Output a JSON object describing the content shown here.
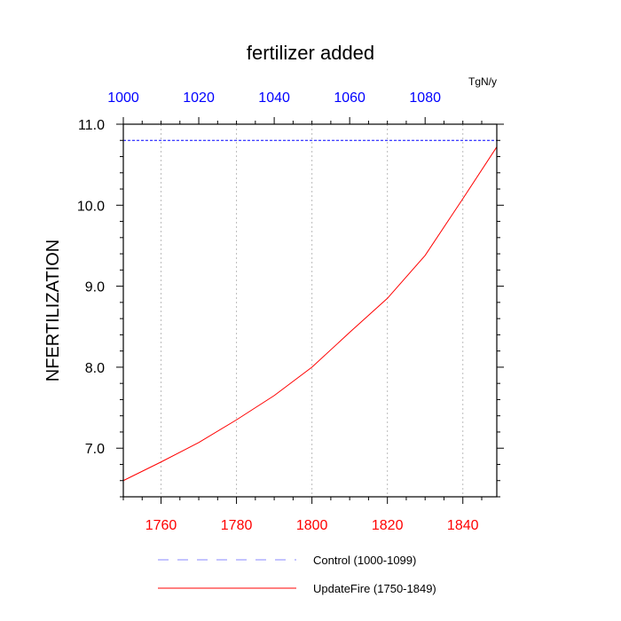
{
  "chart_data": {
    "type": "line",
    "title": "fertilizer added",
    "ylabel": "NFERTILIZATION",
    "top_axis_unit": "TgN/y",
    "ylim": [
      6.4,
      11.0
    ],
    "yticks": [
      7.0,
      8.0,
      9.0,
      10.0,
      11.0
    ],
    "ytick_labels": [
      "7.0",
      "8.0",
      "9.0",
      "10.0",
      "11.0"
    ],
    "y_minor_step": 0.2,
    "bottom_axis": {
      "range": [
        1750,
        1849
      ],
      "ticks": [
        1760,
        1780,
        1800,
        1820,
        1840
      ],
      "tick_labels": [
        "1760",
        "1780",
        "1800",
        "1820",
        "1840"
      ],
      "minor_step": 5,
      "color": "#ff0000"
    },
    "top_axis": {
      "range": [
        1000,
        1099
      ],
      "ticks": [
        1000,
        1020,
        1040,
        1060,
        1080
      ],
      "tick_labels": [
        "1000",
        "1020",
        "1040",
        "1060",
        "1080"
      ],
      "minor_step": 5,
      "color": "#0000ff"
    },
    "grid": "vertical dotted at major ticks",
    "series": [
      {
        "name": "Control (1000-1099)",
        "color": "#0000ff",
        "style": "dashed",
        "axis": "top",
        "x": [
          1000,
          1099
        ],
        "y": [
          10.8,
          10.8
        ]
      },
      {
        "name": "UpdateFire (1750-1849)",
        "color": "#ff0000",
        "style": "solid",
        "axis": "bottom",
        "x": [
          1750,
          1760,
          1770,
          1780,
          1790,
          1800,
          1810,
          1820,
          1830,
          1840,
          1849
        ],
        "y": [
          6.6,
          6.83,
          7.07,
          7.35,
          7.65,
          8.0,
          8.43,
          8.85,
          9.38,
          10.08,
          10.72
        ]
      }
    ],
    "legend": {
      "placement": "bottom",
      "entries": [
        "Control (1000-1099)",
        "UpdateFire (1750-1849)"
      ]
    }
  }
}
